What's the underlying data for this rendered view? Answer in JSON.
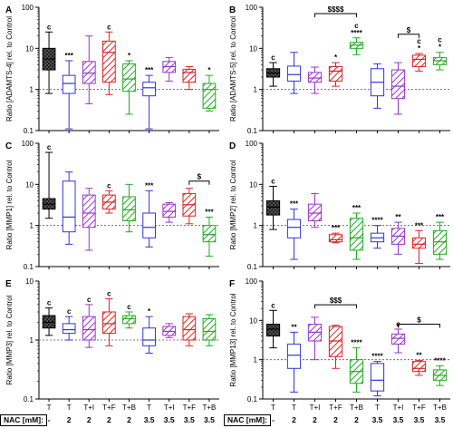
{
  "figure": {
    "nac_label": "NAC [mM]:",
    "nac_values": [
      "-",
      "2",
      "2",
      "2",
      "2",
      "3.5",
      "3.5",
      "3.5",
      "3.5"
    ],
    "groups": [
      "T",
      "T",
      "T+I",
      "T+F",
      "T+B",
      "T",
      "T+I",
      "T+F",
      "T+B"
    ],
    "box_colors": [
      "#000000",
      "#3333dd",
      "#9933cc",
      "#dd2222",
      "#22aa22",
      "#3333dd",
      "#9933cc",
      "#dd2222",
      "#22aa22"
    ]
  },
  "chart_data": [
    {
      "type": "box",
      "panel": "A",
      "ylabel": "Ratio [ADAMTS-4] rel. to Control",
      "yscale": "log",
      "ylim": [
        0.1,
        100
      ],
      "yticks": [
        "0.1",
        "1",
        "10",
        "100"
      ],
      "reference_line": 1,
      "categories": [
        "T",
        "T",
        "T+I",
        "T+F",
        "T+B",
        "T",
        "T+I",
        "T+F",
        "T+B"
      ],
      "boxes": [
        {
          "min": 0.8,
          "q1": 3.0,
          "median": 5.5,
          "q3": 10,
          "max": 25
        },
        {
          "min": 0.11,
          "q1": 0.8,
          "median": 1.4,
          "q3": 2.2,
          "max": 5
        },
        {
          "min": 0.45,
          "q1": 1.4,
          "median": 2.5,
          "q3": 4.8,
          "max": 20
        },
        {
          "min": 0.75,
          "q1": 1.5,
          "median": 8.0,
          "q3": 15,
          "max": 25
        },
        {
          "min": 0.25,
          "q1": 0.9,
          "median": 1.8,
          "q3": 4.2,
          "max": 5
        },
        {
          "min": 0.11,
          "q1": 0.7,
          "median": 1.1,
          "q3": 1.5,
          "max": 2.2
        },
        {
          "min": 1.6,
          "q1": 2.6,
          "median": 3.6,
          "q3": 4.8,
          "max": 6
        },
        {
          "min": 1.0,
          "q1": 1.5,
          "median": 2.6,
          "q3": 3.1,
          "max": 3.6
        },
        {
          "min": 0.3,
          "q1": 0.35,
          "median": 1.0,
          "q3": 1.4,
          "max": 2.2
        }
      ],
      "annotations": [
        "c",
        "***",
        "",
        "c",
        "*",
        "***",
        "",
        "",
        "*"
      ]
    },
    {
      "type": "box",
      "panel": "B",
      "ylabel": "Ratio [ADAMTS-5] rel. to Control",
      "yscale": "log",
      "ylim": [
        0.1,
        100
      ],
      "yticks": [
        "0.1",
        "1",
        "10",
        "100"
      ],
      "reference_line": 1,
      "categories": [
        "T",
        "T",
        "T+I",
        "T+F",
        "T+B",
        "T",
        "T+I",
        "T+F",
        "T+B"
      ],
      "boxes": [
        {
          "min": 1.2,
          "q1": 2.0,
          "median": 2.5,
          "q3": 3.2,
          "max": 4.5
        },
        {
          "min": 0.8,
          "q1": 1.6,
          "median": 2.3,
          "q3": 3.7,
          "max": 8
        },
        {
          "min": 0.8,
          "q1": 1.5,
          "median": 1.9,
          "q3": 2.6,
          "max": 3.5
        },
        {
          "min": 1.2,
          "q1": 1.6,
          "median": 2.8,
          "q3": 3.6,
          "max": 4.5
        },
        {
          "min": 7,
          "q1": 10,
          "median": 12,
          "q3": 14,
          "max": 18
        },
        {
          "min": 0.35,
          "q1": 0.7,
          "median": 1.5,
          "q3": 3.2,
          "max": 4.2
        },
        {
          "min": 0.25,
          "q1": 0.6,
          "median": 1.2,
          "q3": 3.0,
          "max": 4.5
        },
        {
          "min": 2.8,
          "q1": 3.6,
          "median": 5.4,
          "q3": 6.8,
          "max": 7.5
        },
        {
          "min": 3.0,
          "q1": 4.0,
          "median": 5.0,
          "q3": 6.0,
          "max": 8
        }
      ],
      "annotations": [
        "c",
        "",
        "",
        "*",
        "c\n****",
        "",
        "",
        "c\n*",
        "c\n*"
      ],
      "significance_brackets": [
        {
          "from": 3,
          "to": 5,
          "label": "$$$$",
          "y": 70
        },
        {
          "from": 7,
          "to": 8,
          "label": "$",
          "y": 22
        }
      ]
    },
    {
      "type": "box",
      "panel": "C",
      "ylabel": "Ratio [MMP1] rel. to Control",
      "yscale": "log",
      "ylim": [
        0.1,
        100
      ],
      "yticks": [
        "0.1",
        "1",
        "10",
        "100"
      ],
      "reference_line": 1,
      "categories": [
        "T",
        "T",
        "T+I",
        "T+F",
        "T+B",
        "T",
        "T+I",
        "T+F",
        "T+B"
      ],
      "boxes": [
        {
          "min": 1.5,
          "q1": 2.5,
          "median": 3.3,
          "q3": 4.5,
          "max": 60
        },
        {
          "min": 0.35,
          "q1": 0.7,
          "median": 1.6,
          "q3": 12,
          "max": 20
        },
        {
          "min": 0.25,
          "q1": 0.9,
          "median": 2.0,
          "q3": 5.5,
          "max": 8
        },
        {
          "min": 2.0,
          "q1": 2.5,
          "median": 3.7,
          "q3": 5.5,
          "max": 7
        },
        {
          "min": 0.7,
          "q1": 1.3,
          "median": 2.4,
          "q3": 5.0,
          "max": 10
        },
        {
          "min": 0.3,
          "q1": 0.5,
          "median": 0.9,
          "q3": 2.0,
          "max": 7
        },
        {
          "min": 1.2,
          "q1": 1.6,
          "median": 2.2,
          "q3": 3.3,
          "max": 3.6
        },
        {
          "min": 1.1,
          "q1": 1.7,
          "median": 3.2,
          "q3": 6.0,
          "max": 8
        },
        {
          "min": 0.18,
          "q1": 0.4,
          "median": 0.6,
          "q3": 1.0,
          "max": 1.6
        }
      ],
      "annotations": [
        "c",
        "",
        "",
        "c",
        "",
        "***",
        "",
        "",
        "***"
      ],
      "significance_brackets": [
        {
          "from": 8,
          "to": 9,
          "label": "$",
          "y": 12
        }
      ]
    },
    {
      "type": "box",
      "panel": "D",
      "ylabel": "Ratio [MMP2] rel. to Control",
      "yscale": "log",
      "ylim": [
        0.1,
        100
      ],
      "yticks": [
        "0.1",
        "1",
        "10",
        "100"
      ],
      "reference_line": 1,
      "categories": [
        "T",
        "T",
        "T+I",
        "T+F",
        "T+B",
        "T",
        "T+I",
        "T+F",
        "T+B"
      ],
      "boxes": [
        {
          "min": 0.8,
          "q1": 1.8,
          "median": 2.8,
          "q3": 4.0,
          "max": 9
        },
        {
          "min": 0.15,
          "q1": 0.5,
          "median": 0.9,
          "q3": 1.4,
          "max": 2.5
        },
        {
          "min": 0.9,
          "q1": 1.3,
          "median": 2.0,
          "q3": 3.3,
          "max": 6
        },
        {
          "min": 0.38,
          "q1": 0.4,
          "median": 0.45,
          "q3": 0.6,
          "max": 0.65
        },
        {
          "min": 0.15,
          "q1": 0.25,
          "median": 0.5,
          "q3": 1.5,
          "max": 2.0
        },
        {
          "min": 0.28,
          "q1": 0.4,
          "median": 0.5,
          "q3": 0.65,
          "max": 1.0
        },
        {
          "min": 0.2,
          "q1": 0.35,
          "median": 0.55,
          "q3": 0.85,
          "max": 1.2
        },
        {
          "min": 0.12,
          "q1": 0.28,
          "median": 0.35,
          "q3": 0.5,
          "max": 0.75
        },
        {
          "min": 0.15,
          "q1": 0.2,
          "median": 0.4,
          "q3": 0.75,
          "max": 1.2
        }
      ],
      "annotations": [
        "c",
        "***",
        "",
        "***",
        "***",
        "****",
        "**",
        "***",
        "***"
      ]
    },
    {
      "type": "box",
      "panel": "E",
      "ylabel": "Ratio [MMP3] rel. to Control",
      "yscale": "log",
      "ylim": [
        0.1,
        10
      ],
      "yticks": [
        "0.1",
        "1",
        "10"
      ],
      "reference_line": 1,
      "categories": [
        "T",
        "T",
        "T+I",
        "T+F",
        "T+B",
        "T",
        "T+I",
        "T+F",
        "T+B"
      ],
      "boxes": [
        {
          "min": 1.2,
          "q1": 1.6,
          "median": 2.0,
          "q3": 2.6,
          "max": 3.5
        },
        {
          "min": 1.0,
          "q1": 1.3,
          "median": 1.5,
          "q3": 1.9,
          "max": 2.5
        },
        {
          "min": 0.75,
          "q1": 1.0,
          "median": 1.5,
          "q3": 2.5,
          "max": 4
        },
        {
          "min": 0.8,
          "q1": 1.3,
          "median": 1.9,
          "q3": 3.0,
          "max": 5
        },
        {
          "min": 1.6,
          "q1": 1.9,
          "median": 2.3,
          "q3": 2.6,
          "max": 3
        },
        {
          "min": 0.6,
          "q1": 0.8,
          "median": 1.0,
          "q3": 1.6,
          "max": 2.5
        },
        {
          "min": 1.1,
          "q1": 1.2,
          "median": 1.4,
          "q3": 1.7,
          "max": 1.9
        },
        {
          "min": 0.8,
          "q1": 1.0,
          "median": 1.5,
          "q3": 2.5,
          "max": 2.8
        },
        {
          "min": 0.8,
          "q1": 1.0,
          "median": 1.4,
          "q3": 2.3,
          "max": 2.7
        }
      ],
      "annotations": [
        "c",
        "c",
        "c",
        "c",
        "c",
        "*",
        "",
        "",
        ""
      ]
    },
    {
      "type": "box",
      "panel": "F",
      "ylabel": "Ratio [MMP13] rel. to Control",
      "yscale": "log",
      "ylim": [
        0.1,
        100
      ],
      "yticks": [
        "0.1",
        "1",
        "10",
        "100"
      ],
      "reference_line": 1,
      "categories": [
        "T",
        "T",
        "T+I",
        "T+F",
        "T+B",
        "T",
        "T+I",
        "T+F",
        "T+B"
      ],
      "boxes": [
        {
          "min": 2.0,
          "q1": 4.0,
          "median": 6.0,
          "q3": 8.0,
          "max": 18
        },
        {
          "min": 0.15,
          "q1": 0.6,
          "median": 1.3,
          "q3": 2.5,
          "max": 5
        },
        {
          "min": 1.0,
          "q1": 3.0,
          "median": 5.0,
          "q3": 8.0,
          "max": 12
        },
        {
          "min": 0.6,
          "q1": 1.2,
          "median": 3.0,
          "q3": 7.0,
          "max": 7.5
        },
        {
          "min": 0.15,
          "q1": 0.25,
          "median": 0.5,
          "q3": 1.0,
          "max": 2.0
        },
        {
          "min": 0.12,
          "q1": 0.16,
          "median": 0.3,
          "q3": 0.8,
          "max": 0.9
        },
        {
          "min": 1.5,
          "q1": 2.5,
          "median": 3.5,
          "q3": 4.5,
          "max": 6
        },
        {
          "min": 0.4,
          "q1": 0.5,
          "median": 0.6,
          "q3": 0.9,
          "max": 0.95
        },
        {
          "min": 0.22,
          "q1": 0.3,
          "median": 0.4,
          "q3": 0.55,
          "max": 0.7
        }
      ],
      "annotations": [
        "c",
        "**",
        "",
        "",
        "****",
        "****",
        "c",
        "**",
        "****"
      ],
      "significance_brackets": [
        {
          "from": 3,
          "to": 5,
          "label": "$$$",
          "y": 25
        },
        {
          "from": 7,
          "to": 9,
          "label": "$",
          "y": 8
        }
      ]
    }
  ]
}
